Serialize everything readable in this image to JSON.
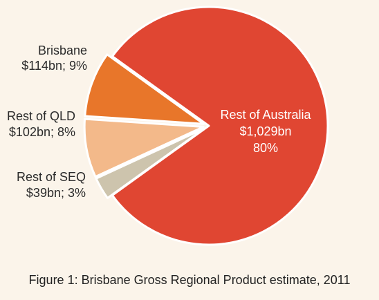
{
  "chart_data": {
    "type": "pie",
    "title": "Figure 1: Brisbane Gross Regional Product estimate, 2011",
    "slices": [
      {
        "name": "Rest of Australia",
        "value": 1029,
        "value_label": "$1,029bn",
        "percent_label": "80%",
        "color": "#e04632",
        "exploded": false
      },
      {
        "name": "Brisbane",
        "value": 114,
        "value_label": "$114bn; 9%",
        "color": "#e8762a",
        "exploded": true
      },
      {
        "name": "Rest of QLD",
        "value": 102,
        "value_label": "$102bn; 8%",
        "color": "#f3b98a",
        "exploded": true
      },
      {
        "name": "Rest of SEQ",
        "value": 39,
        "value_label": "$39bn; 3%",
        "color": "#cdc4ad",
        "exploded": true
      }
    ]
  },
  "colors": {
    "background": "#fbf4ea",
    "slice_border": "#ffffff"
  }
}
